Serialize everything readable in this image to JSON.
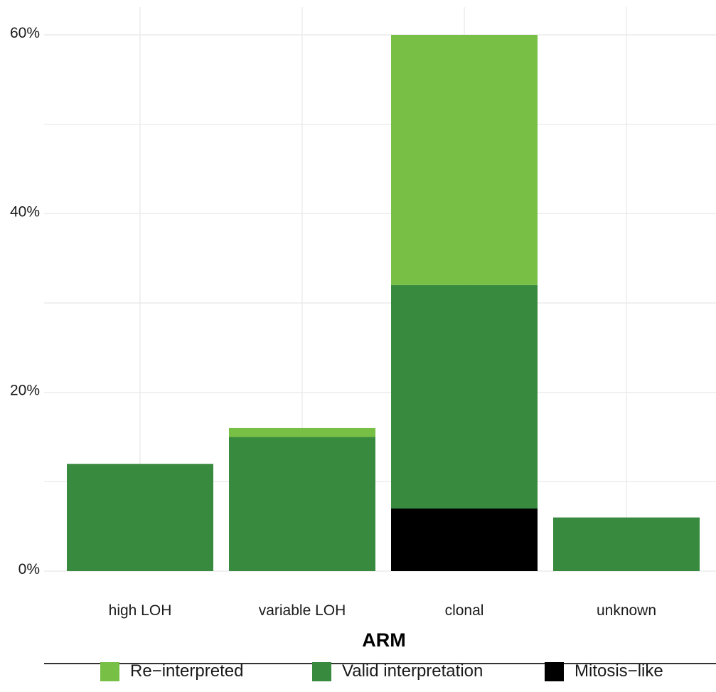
{
  "chart_data": {
    "type": "bar",
    "stacked": true,
    "xlabel": "ARM",
    "ylabel": "",
    "categories": [
      "high LOH",
      "variable LOH",
      "clonal",
      "unknown"
    ],
    "y_ticks": [
      "0%",
      "20%",
      "40%",
      "60%"
    ],
    "y_tick_values": [
      0,
      20,
      40,
      60
    ],
    "ylim": [
      0,
      60
    ],
    "grid": true,
    "legend_position": "bottom",
    "series": [
      {
        "name": "Mitosis−like",
        "color": "#000000",
        "values": [
          0,
          0,
          7,
          0
        ]
      },
      {
        "name": "Valid interpretation",
        "color": "#388a3f",
        "values": [
          12,
          15,
          25,
          6
        ]
      },
      {
        "name": "Re−interpreted",
        "color": "#77bf45",
        "values": [
          0,
          1,
          28,
          0
        ]
      }
    ],
    "legend_order": [
      "Re−interpreted",
      "Valid interpretation",
      "Mitosis−like"
    ]
  }
}
